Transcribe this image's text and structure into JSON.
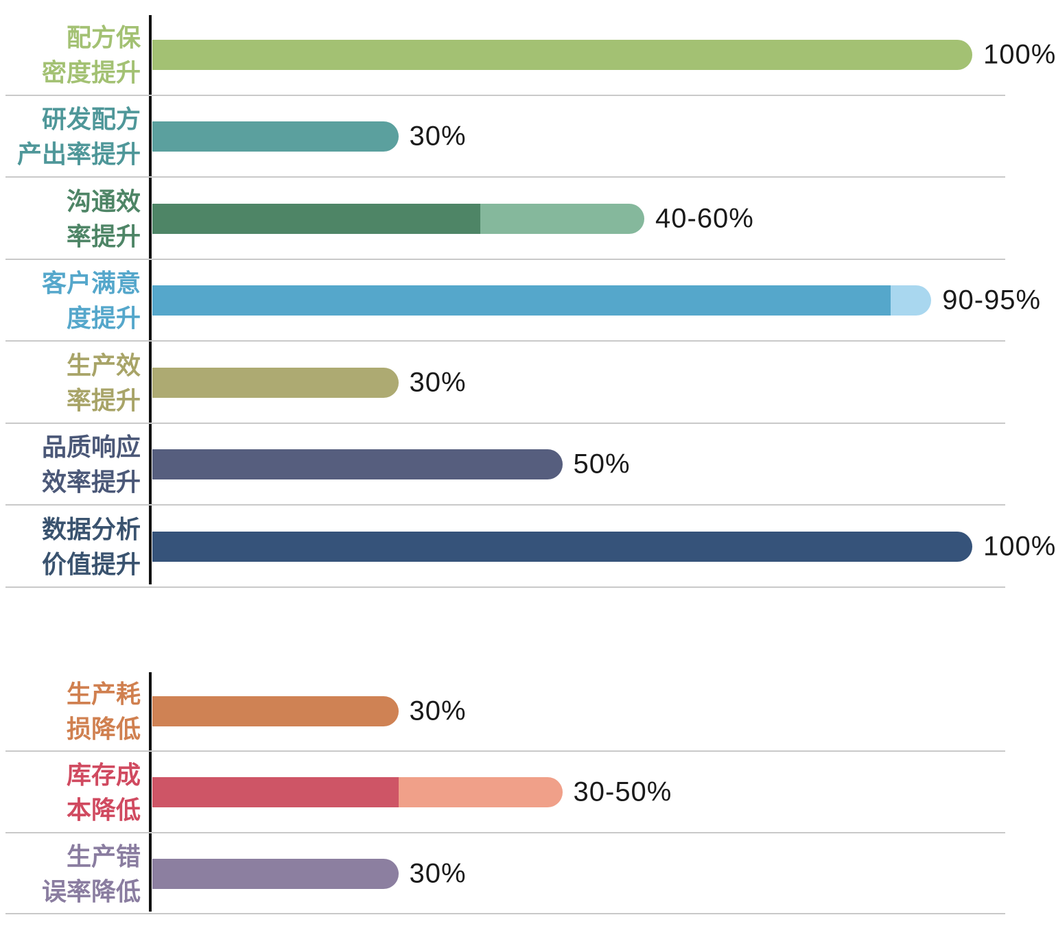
{
  "colors": {
    "background": "#ffffff",
    "axis": "#111111",
    "separator": "#c9c9c9",
    "value_text": "#1a1a1a"
  },
  "chart_data": {
    "type": "bar",
    "orientation": "horizontal",
    "unit": "%",
    "xlim": [
      0,
      100
    ],
    "grid": "row-separators-only",
    "legend": "none",
    "groups": [
      {
        "name": "improvements",
        "rows": [
          {
            "label_lines": [
              "配方保",
              "密度提升"
            ],
            "label_color": "#a3c173",
            "value_label": "100%",
            "value_min": 100,
            "value_max": 100,
            "bar_color": "#a3c173",
            "bar_color_light": null
          },
          {
            "label_lines": [
              "研发配方",
              "产出率提升"
            ],
            "label_color": "#4f9799",
            "value_label": "30%",
            "value_min": 30,
            "value_max": 30,
            "bar_color": "#5ba09e",
            "bar_color_light": null
          },
          {
            "label_lines": [
              "沟通效",
              "率提升"
            ],
            "label_color": "#4e8566",
            "value_label": "40-60%",
            "value_min": 40,
            "value_max": 60,
            "bar_color": "#4e8566",
            "bar_color_light": "#85b89c"
          },
          {
            "label_lines": [
              "客户满意",
              "度提升"
            ],
            "label_color": "#55a7cb",
            "value_label": "90-95%",
            "value_min": 90,
            "value_max": 95,
            "bar_color": "#55a7cb",
            "bar_color_light": "#a9d7ef"
          },
          {
            "label_lines": [
              "生产效",
              "率提升"
            ],
            "label_color": "#a8a468",
            "value_label": "30%",
            "value_min": 30,
            "value_max": 30,
            "bar_color": "#adaa72",
            "bar_color_light": null
          },
          {
            "label_lines": [
              "品质响应",
              "效率提升"
            ],
            "label_color": "#4b5878",
            "value_label": "50%",
            "value_min": 50,
            "value_max": 50,
            "bar_color": "#565e7e",
            "bar_color_light": null
          },
          {
            "label_lines": [
              "数据分析",
              "价值提升"
            ],
            "label_color": "#3a536f",
            "value_label": "100%",
            "value_min": 100,
            "value_max": 100,
            "bar_color": "#36537a",
            "bar_color_light": null
          }
        ]
      },
      {
        "name": "reductions",
        "rows": [
          {
            "label_lines": [
              "生产耗",
              "损降低"
            ],
            "label_color": "#d08050",
            "value_label": "30%",
            "value_min": 30,
            "value_max": 30,
            "bar_color": "#cf8254",
            "bar_color_light": null
          },
          {
            "label_lines": [
              "库存成",
              "本降低"
            ],
            "label_color": "#d04a60",
            "value_label": "30-50%",
            "value_min": 30,
            "value_max": 50,
            "bar_color": "#ce5566",
            "bar_color_light": "#f0a089"
          },
          {
            "label_lines": [
              "生产错",
              "误率降低"
            ],
            "label_color": "#8a7da0",
            "value_label": "30%",
            "value_min": 30,
            "value_max": 30,
            "bar_color": "#8c7fa0",
            "bar_color_light": null
          }
        ]
      }
    ]
  }
}
